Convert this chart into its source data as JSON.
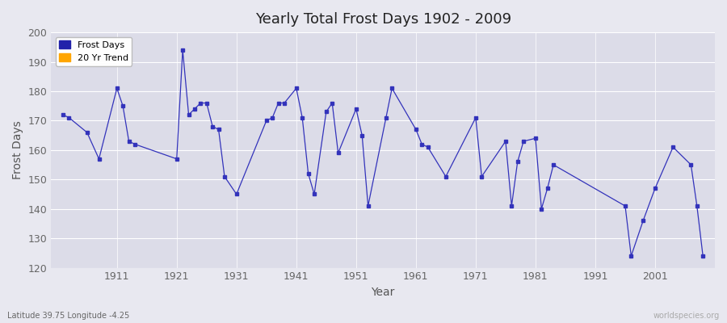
{
  "title": "Yearly Total Frost Days 1902 - 2009",
  "xlabel": "Year",
  "ylabel": "Frost Days",
  "subtitle": "Latitude 39.75 Longitude -4.25",
  "watermark": "worldspecies.org",
  "ylim": [
    120,
    200
  ],
  "yticks": [
    120,
    130,
    140,
    150,
    160,
    170,
    180,
    190,
    200
  ],
  "xtick_years": [
    1911,
    1921,
    1931,
    1941,
    1951,
    1961,
    1971,
    1981,
    1991,
    2001
  ],
  "xlim": [
    1900,
    2011
  ],
  "line_color": "#3333bb",
  "bg_color": "#dcdce8",
  "grid_color": "#ffffff",
  "fig_color": "#e8e8f0",
  "legend_frost_color": "#2222aa",
  "legend_trend_color": "#ffa500",
  "years": [
    1902,
    1903,
    1906,
    1908,
    1911,
    1912,
    1913,
    1914,
    1921,
    1922,
    1923,
    1924,
    1925,
    1926,
    1927,
    1928,
    1929,
    1931,
    1936,
    1937,
    1938,
    1939,
    1941,
    1942,
    1943,
    1944,
    1946,
    1947,
    1948,
    1951,
    1952,
    1953,
    1956,
    1957,
    1961,
    1962,
    1963,
    1966,
    1971,
    1972,
    1976,
    1977,
    1978,
    1979,
    1981,
    1982,
    1983,
    1984,
    1996,
    1997,
    1999,
    2001,
    2004,
    2007,
    2008,
    2009
  ],
  "frost_days": [
    172,
    171,
    166,
    157,
    181,
    175,
    163,
    162,
    157,
    194,
    172,
    174,
    176,
    176,
    168,
    167,
    151,
    145,
    170,
    171,
    176,
    176,
    181,
    171,
    152,
    145,
    173,
    176,
    159,
    174,
    165,
    141,
    171,
    181,
    167,
    162,
    161,
    151,
    171,
    151,
    163,
    141,
    156,
    163,
    164,
    140,
    147,
    155,
    141,
    124,
    136,
    147,
    161,
    155,
    141,
    124
  ]
}
